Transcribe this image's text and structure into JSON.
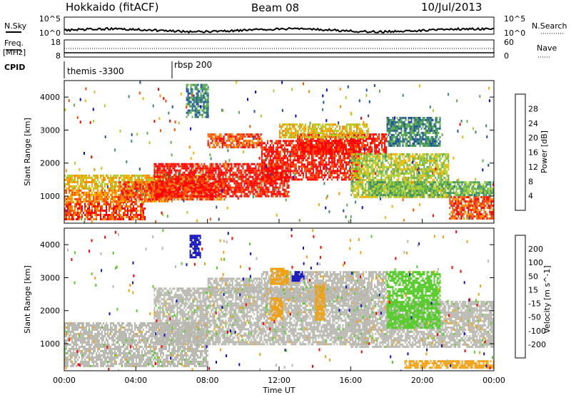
{
  "header": {
    "station": "Hokkaido (fitACF)",
    "beam": "Beam 08",
    "date": "10/Jul/2013"
  },
  "top_panels": {
    "noise_sky_label": "N.Sky",
    "noise_sky_ticks": [
      "10^5",
      "10^0"
    ],
    "noise_search_label": "N.Search",
    "noise_search_ticks": [
      "10^5",
      "10^0"
    ],
    "freq_label_line1": "Freq.",
    "freq_label_line2": "[MHz]",
    "freq_ticks": [
      "18",
      "8"
    ],
    "nave_label": "Nave",
    "nave_ticks": [
      "60",
      "0"
    ],
    "cpid_label": "CPID",
    "cpid_segments": [
      {
        "name": "themis -3300",
        "start_hour": 0
      },
      {
        "name": "rbsp 200",
        "start_hour": 6
      }
    ]
  },
  "colors": {
    "power_scale": [
      "#0000ff",
      "#1f4fa0",
      "#3b8a6a",
      "#61b04a",
      "#a7d130",
      "#f0b500",
      "#ff8a00",
      "#ff4a00",
      "#ff0000"
    ],
    "velocity_scale": [
      "#1010c0",
      "#1e56b0",
      "#1f8040",
      "#55cc2a",
      "#b8b8b0",
      "#bcbcb4",
      "#f0a010",
      "#ff7000",
      "#ff3000",
      "#ff0000"
    ],
    "ground_scatter": "#c0c0b8"
  },
  "chart_data": [
    {
      "type": "heatmap",
      "name": "Power",
      "xlabel": "",
      "ylabel": "Slant Range [km]",
      "xlim": [
        0,
        24
      ],
      "ylim": [
        180,
        4500
      ],
      "yticks": [
        "1000",
        "2000",
        "3000",
        "4000"
      ],
      "colorbar_label": "Power [dB]",
      "colorbar_ticks": [
        "4",
        "8",
        "12",
        "16",
        "20",
        "24",
        "28"
      ],
      "blobs": [
        {
          "t0": 0,
          "t1": 4.5,
          "r0": 300,
          "r1": 850,
          "level": 7
        },
        {
          "t0": 0,
          "t1": 6,
          "r0": 850,
          "r1": 1200,
          "level": 6
        },
        {
          "t0": 0,
          "t1": 8,
          "r0": 1200,
          "r1": 1650,
          "level": 5
        },
        {
          "t0": 3,
          "t1": 9,
          "r0": 900,
          "r1": 1450,
          "level": 7
        },
        {
          "t0": 5,
          "t1": 12.5,
          "r0": 1000,
          "r1": 2000,
          "level": 8
        },
        {
          "t0": 8,
          "t1": 11,
          "r0": 2500,
          "r1": 2900,
          "level": 7
        },
        {
          "t0": 11,
          "t1": 16.5,
          "r0": 1500,
          "r1": 2700,
          "level": 8
        },
        {
          "t0": 13,
          "t1": 18,
          "r0": 2300,
          "r1": 2900,
          "level": 8
        },
        {
          "t0": 12,
          "t1": 17,
          "r0": 2800,
          "r1": 3200,
          "level": 5
        },
        {
          "t0": 16,
          "t1": 21.5,
          "r0": 1000,
          "r1": 2300,
          "level": 4
        },
        {
          "t0": 18,
          "t1": 21,
          "r0": 2500,
          "r1": 3400,
          "level": 2
        },
        {
          "t0": 21.5,
          "t1": 24,
          "r0": 300,
          "r1": 1000,
          "level": 7
        },
        {
          "t0": 17,
          "t1": 24,
          "r0": 1000,
          "r1": 1450,
          "level": 3
        },
        {
          "t0": 6.8,
          "t1": 8,
          "r0": 3400,
          "r1": 4400,
          "level": 2
        }
      ]
    },
    {
      "type": "heatmap",
      "name": "Velocity",
      "xlabel": "Time UT",
      "ylabel": "Slant Range [km]",
      "xlim": [
        0,
        24
      ],
      "ylim": [
        180,
        4500
      ],
      "xticks": [
        "00:00",
        "04:00",
        "08:00",
        "12:00",
        "16:00",
        "20:00",
        "00:00"
      ],
      "yticks": [
        "1000",
        "2000",
        "3000",
        "4000"
      ],
      "colorbar_label": "Velocity [m s^-1]",
      "colorbar_ticks": [
        "200",
        "100",
        "50",
        "15",
        "-15",
        "-50",
        "-100",
        "-200"
      ],
      "blobs": [
        {
          "t0": 0,
          "t1": 8,
          "r0": 300,
          "r1": 1650,
          "level": 4
        },
        {
          "t0": 5,
          "t1": 17,
          "r0": 1000,
          "r1": 2700,
          "level": 4
        },
        {
          "t0": 11,
          "t1": 18,
          "r0": 2300,
          "r1": 3200,
          "level": 4
        },
        {
          "t0": 16,
          "t1": 24,
          "r0": 900,
          "r1": 2300,
          "level": 4
        },
        {
          "t0": 8,
          "t1": 11,
          "r0": 2600,
          "r1": 3000,
          "level": 4
        },
        {
          "t0": 11.5,
          "t1": 12.5,
          "r0": 2800,
          "r1": 3300,
          "level": 6
        },
        {
          "t0": 12.7,
          "t1": 13.4,
          "r0": 2900,
          "r1": 3200,
          "level": 0
        },
        {
          "t0": 11.5,
          "t1": 12.2,
          "r0": 1700,
          "r1": 2400,
          "level": 6
        },
        {
          "t0": 14,
          "t1": 14.5,
          "r0": 1700,
          "r1": 2800,
          "level": 6
        },
        {
          "t0": 18,
          "t1": 21,
          "r0": 1500,
          "r1": 3200,
          "level": 3
        },
        {
          "t0": 7,
          "t1": 7.6,
          "r0": 3600,
          "r1": 4300,
          "level": 0
        },
        {
          "t0": 19,
          "t1": 24,
          "r0": 250,
          "r1": 500,
          "level": 6
        }
      ]
    }
  ]
}
